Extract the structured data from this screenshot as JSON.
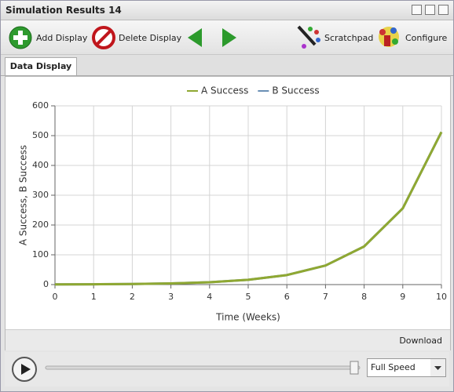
{
  "window": {
    "title": "Simulation Results 14"
  },
  "toolbar": {
    "add": "Add Display",
    "delete": "Delete Display",
    "scratchpad": "Scratchpad",
    "configure": "Configure"
  },
  "tab": "Data Display",
  "chart_data": {
    "type": "line",
    "x": [
      0,
      1,
      2,
      3,
      4,
      5,
      6,
      7,
      8,
      9,
      10
    ],
    "series": [
      {
        "name": "A Success",
        "color": "#8fa832",
        "values": [
          0.5,
          1,
          2,
          4,
          8,
          16,
          32,
          64,
          128,
          256,
          512
        ]
      },
      {
        "name": "B Success",
        "color": "#6a8fb5",
        "values": [
          0.5,
          1,
          2,
          4,
          8,
          16,
          32,
          64,
          128,
          256,
          512
        ]
      }
    ],
    "xlim": [
      0,
      10
    ],
    "xticks": [
      0,
      1,
      2,
      3,
      4,
      5,
      6,
      7,
      8,
      9,
      10
    ],
    "ylim": [
      0,
      600
    ],
    "yticks": [
      0,
      100,
      200,
      300,
      400,
      500,
      600
    ],
    "xlabel": "Time (Weeks)",
    "ylabel": "A Success, B Success",
    "grid": true,
    "legend": "top"
  },
  "footer": {
    "download": "Download"
  },
  "controls": {
    "speed": "Full Speed"
  }
}
